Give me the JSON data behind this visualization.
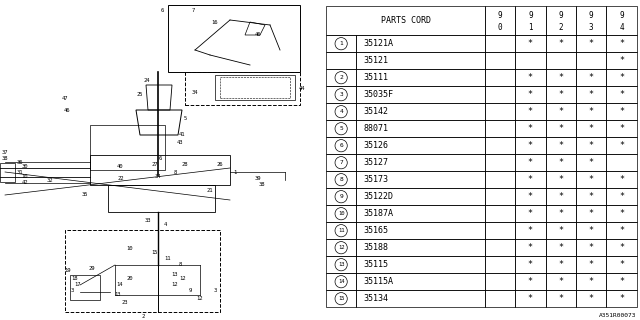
{
  "watermark": "A351R00073",
  "rows": [
    {
      "num": "1",
      "code": "35121A",
      "marks": [
        false,
        true,
        true,
        true,
        true
      ]
    },
    {
      "num": "",
      "code": "35121",
      "marks": [
        false,
        false,
        false,
        false,
        true
      ]
    },
    {
      "num": "2",
      "code": "35111",
      "marks": [
        false,
        true,
        true,
        true,
        true
      ]
    },
    {
      "num": "3",
      "code": "35035F",
      "marks": [
        false,
        true,
        true,
        true,
        true
      ]
    },
    {
      "num": "4",
      "code": "35142",
      "marks": [
        false,
        true,
        true,
        true,
        true
      ]
    },
    {
      "num": "5",
      "code": "88071",
      "marks": [
        false,
        true,
        true,
        true,
        true
      ]
    },
    {
      "num": "6",
      "code": "35126",
      "marks": [
        false,
        true,
        true,
        true,
        true
      ]
    },
    {
      "num": "7",
      "code": "35127",
      "marks": [
        false,
        true,
        true,
        true,
        false
      ]
    },
    {
      "num": "8",
      "code": "35173",
      "marks": [
        false,
        true,
        true,
        true,
        true
      ]
    },
    {
      "num": "9",
      "code": "35122D",
      "marks": [
        false,
        true,
        true,
        true,
        true
      ]
    },
    {
      "num": "10",
      "code": "35187A",
      "marks": [
        false,
        true,
        true,
        true,
        true
      ]
    },
    {
      "num": "11",
      "code": "35165",
      "marks": [
        false,
        true,
        true,
        true,
        true
      ]
    },
    {
      "num": "12",
      "code": "35188",
      "marks": [
        false,
        true,
        true,
        true,
        true
      ]
    },
    {
      "num": "13",
      "code": "35115",
      "marks": [
        false,
        true,
        true,
        true,
        true
      ]
    },
    {
      "num": "14",
      "code": "35115A",
      "marks": [
        false,
        true,
        true,
        true,
        true
      ]
    },
    {
      "num": "15",
      "code": "35134",
      "marks": [
        false,
        true,
        true,
        true,
        true
      ]
    }
  ],
  "col_headers": [
    "9\n0",
    "9\n1",
    "9\n2",
    "9\n3",
    "9\n4"
  ],
  "bg_color": "#ffffff",
  "line_color": "#000000",
  "text_color": "#000000",
  "star": "*"
}
